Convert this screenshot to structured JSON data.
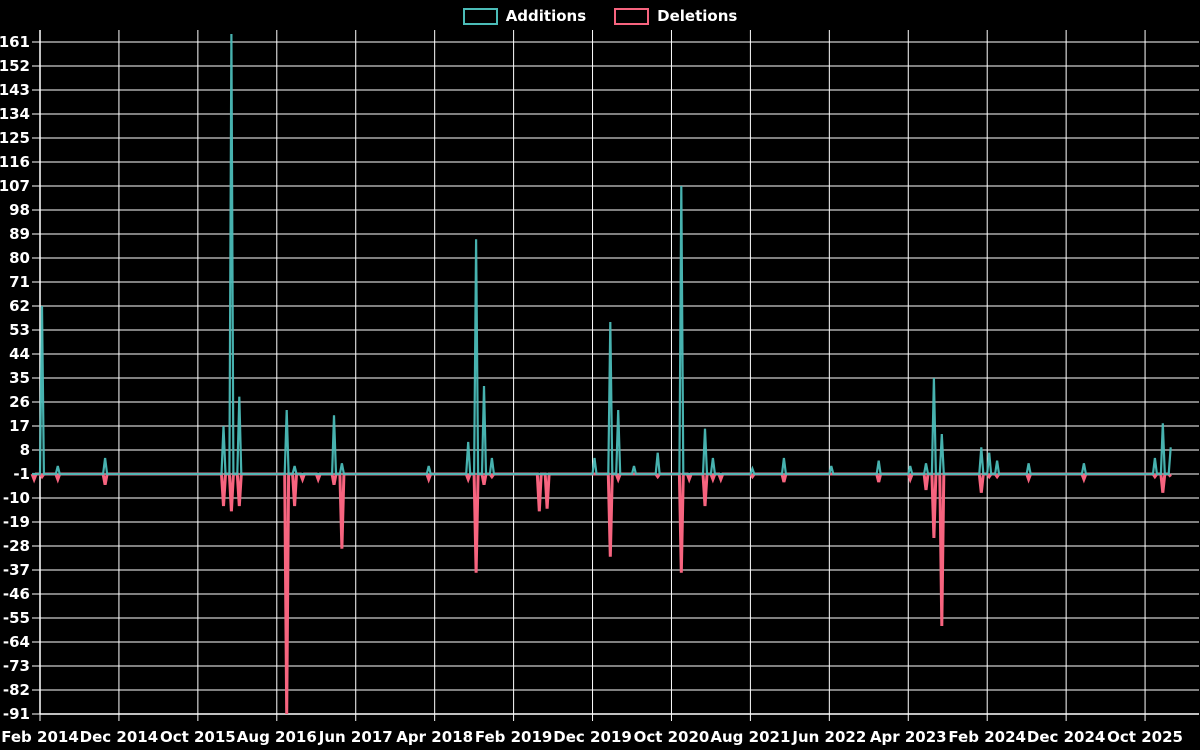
{
  "chart_data": {
    "type": "line",
    "title": "",
    "legend_position": "top-center",
    "grid": true,
    "background_color": "#000000",
    "grid_color": "#ffffff",
    "text_color": "#ffffff",
    "series": [
      {
        "name": "Additions",
        "color": "#4bbcb8"
      },
      {
        "name": "Deletions",
        "color": "#f7647f"
      }
    ],
    "y_ticks": [
      161,
      152,
      143,
      134,
      125,
      116,
      107,
      98,
      89,
      80,
      71,
      62,
      53,
      44,
      35,
      26,
      17,
      8,
      -1,
      -10,
      -19,
      -28,
      -37,
      -46,
      -55,
      -64,
      -73,
      -82,
      -91
    ],
    "ylim": [
      -91,
      161
    ],
    "x_tick_labels": [
      "Feb 2014",
      "Dec 2014",
      "Oct 2015",
      "Aug 2016",
      "Jun 2017",
      "Apr 2018",
      "Feb 2019",
      "Dec 2019",
      "Oct 2020",
      "Aug 2021",
      "Jun 2022",
      "Apr 2023",
      "Feb 2024",
      "Dec 2024",
      "Oct 2025"
    ],
    "x_tick_interval_months": 10,
    "x_range_months": [
      "2014-01",
      "2026-01"
    ],
    "baseline_value": -1,
    "points": [
      {
        "date": "2014-01",
        "deletions": -3
      },
      {
        "date": "2014-02",
        "additions": 62,
        "deletions": -2
      },
      {
        "date": "2014-04",
        "additions": 2,
        "deletions": -3
      },
      {
        "date": "2014-10",
        "additions": 5,
        "deletions": -5
      },
      {
        "date": "2016-01",
        "additions": 17,
        "deletions": -13
      },
      {
        "date": "2016-02",
        "additions": 164,
        "deletions": -15
      },
      {
        "date": "2016-03",
        "additions": 28,
        "deletions": -13
      },
      {
        "date": "2016-09",
        "additions": 23,
        "deletions": -91
      },
      {
        "date": "2016-10",
        "additions": 2,
        "deletions": -13
      },
      {
        "date": "2016-11",
        "deletions": -3
      },
      {
        "date": "2017-01",
        "deletions": -3
      },
      {
        "date": "2017-03",
        "additions": 21,
        "deletions": -5
      },
      {
        "date": "2017-04",
        "additions": 3,
        "deletions": -29
      },
      {
        "date": "2018-03",
        "additions": 2,
        "deletions": -3
      },
      {
        "date": "2018-08",
        "additions": 11,
        "deletions": -3
      },
      {
        "date": "2018-09",
        "additions": 87,
        "deletions": -38
      },
      {
        "date": "2018-10",
        "additions": 32,
        "deletions": -5
      },
      {
        "date": "2018-11",
        "additions": 5,
        "deletions": -2
      },
      {
        "date": "2019-05",
        "deletions": -15
      },
      {
        "date": "2019-06",
        "deletions": -14
      },
      {
        "date": "2019-12",
        "additions": 5
      },
      {
        "date": "2020-02",
        "additions": 56,
        "deletions": -32
      },
      {
        "date": "2020-03",
        "additions": 23,
        "deletions": -3
      },
      {
        "date": "2020-05",
        "additions": 2
      },
      {
        "date": "2020-08",
        "additions": 7,
        "deletions": -2
      },
      {
        "date": "2020-11",
        "additions": 107,
        "deletions": -38
      },
      {
        "date": "2020-12",
        "deletions": -3
      },
      {
        "date": "2021-02",
        "additions": 16,
        "deletions": -13
      },
      {
        "date": "2021-03",
        "additions": 5,
        "deletions": -3
      },
      {
        "date": "2021-04",
        "deletions": -3
      },
      {
        "date": "2021-08",
        "additions": 1,
        "deletions": -2
      },
      {
        "date": "2021-12",
        "additions": 5,
        "deletions": -4
      },
      {
        "date": "2022-06",
        "additions": 2
      },
      {
        "date": "2022-12",
        "additions": 4,
        "deletions": -4
      },
      {
        "date": "2023-04",
        "additions": 2,
        "deletions": -3
      },
      {
        "date": "2023-06",
        "additions": 3,
        "deletions": -7
      },
      {
        "date": "2023-07",
        "additions": 35,
        "deletions": -25
      },
      {
        "date": "2023-08",
        "additions": 14,
        "deletions": -58
      },
      {
        "date": "2024-01",
        "additions": 9,
        "deletions": -8
      },
      {
        "date": "2024-02",
        "additions": 7,
        "deletions": -2
      },
      {
        "date": "2024-03",
        "additions": 4,
        "deletions": -2
      },
      {
        "date": "2024-07",
        "additions": 3,
        "deletions": -3
      },
      {
        "date": "2025-02",
        "additions": 3,
        "deletions": -3
      },
      {
        "date": "2025-11",
        "additions": 5,
        "deletions": -2
      },
      {
        "date": "2025-12",
        "additions": 18,
        "deletions": -8
      },
      {
        "date": "2026-01",
        "additions": 9,
        "deletions": -2
      }
    ]
  }
}
